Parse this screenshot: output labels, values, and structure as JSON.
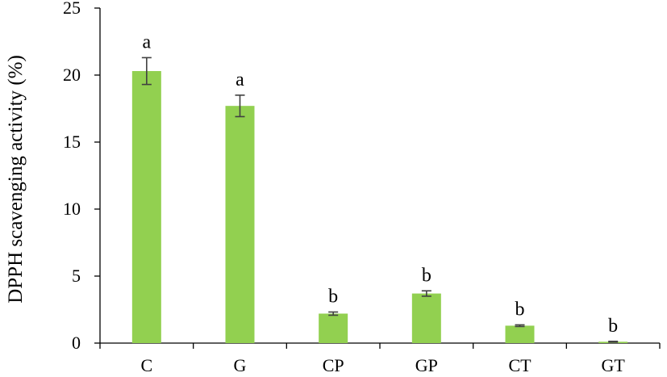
{
  "chart_data": {
    "type": "bar",
    "categories": [
      "C",
      "G",
      "CP",
      "GP",
      "CT",
      "GT"
    ],
    "values": [
      20.3,
      17.7,
      2.2,
      3.7,
      1.3,
      0.1
    ],
    "errors": [
      1.0,
      0.8,
      0.12,
      0.2,
      0.06,
      0.03
    ],
    "significance": [
      "a",
      "a",
      "b",
      "b",
      "b",
      "b"
    ],
    "ylabel": "DPPH scavenging activity (%)",
    "xlabel": "",
    "title": "",
    "ylim": [
      0,
      25
    ],
    "yticks": [
      0,
      5,
      10,
      15,
      20,
      25
    ],
    "grid": false,
    "legend": "none",
    "bar_color": "#92d050",
    "error_color": "#404040"
  }
}
